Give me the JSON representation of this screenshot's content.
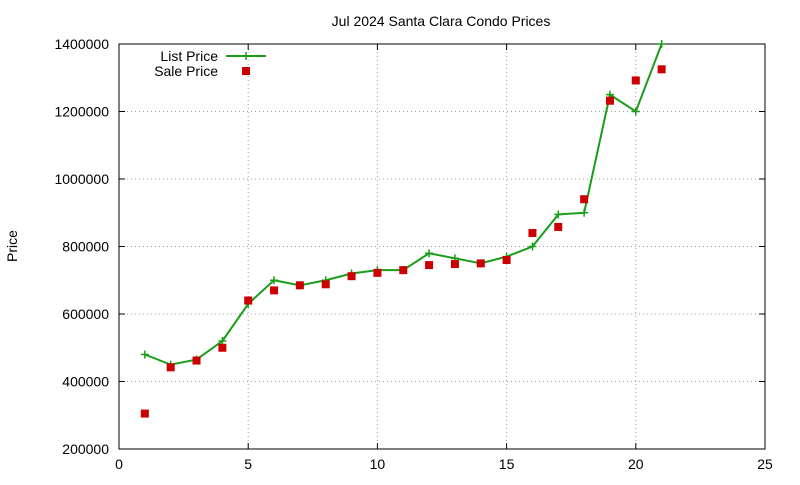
{
  "chart_data": {
    "type": "line",
    "title": "Jul 2024 Santa Clara Condo Prices",
    "xlabel": "",
    "ylabel": "Price",
    "xlim": [
      0,
      25
    ],
    "ylim": [
      200000,
      1400000
    ],
    "x_ticks": [
      0,
      5,
      10,
      15,
      20,
      25
    ],
    "y_ticks": [
      200000,
      400000,
      600000,
      800000,
      1000000,
      1200000,
      1400000
    ],
    "x_tick_labels": [
      "0",
      "5",
      "10",
      "15",
      "20",
      "25"
    ],
    "y_tick_labels": [
      "200000",
      "400000",
      "600000",
      "800000",
      "1000000",
      "1200000",
      "1400000"
    ],
    "grid": true,
    "legend_position": "top-left",
    "series": [
      {
        "name": "List Price",
        "style": "line+cross",
        "color": "#1a9e1a",
        "x": [
          1,
          2,
          3,
          4,
          5,
          6,
          7,
          8,
          9,
          10,
          11,
          12,
          13,
          14,
          15,
          16,
          17,
          18,
          19,
          20,
          21
        ],
        "values": [
          480000,
          450000,
          465000,
          520000,
          630000,
          700000,
          685000,
          700000,
          720000,
          730000,
          730000,
          780000,
          765000,
          750000,
          770000,
          800000,
          895000,
          900000,
          1250000,
          1200000,
          1400000
        ]
      },
      {
        "name": "Sale Price",
        "style": "square",
        "color": "#cc0000",
        "x": [
          1,
          2,
          3,
          4,
          5,
          6,
          7,
          8,
          9,
          10,
          11,
          12,
          13,
          14,
          15,
          16,
          17,
          18,
          19,
          20,
          21
        ],
        "values": [
          305000,
          442000,
          462000,
          500000,
          640000,
          670000,
          685000,
          688000,
          712000,
          722000,
          730000,
          745000,
          748000,
          750000,
          760000,
          840000,
          858000,
          940000,
          1232000,
          1292000,
          1325000
        ]
      }
    ]
  }
}
